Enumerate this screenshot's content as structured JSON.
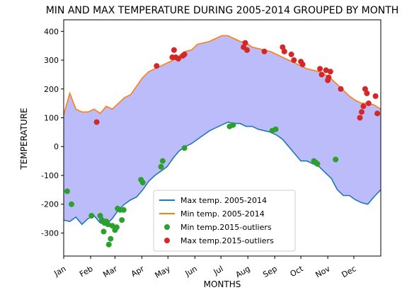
{
  "chart_data": {
    "type": "line",
    "title": "MIN AND MAX TEMPERATURE DURING 2005-2014 GROUPED BY MONTH",
    "xlabel": "MONTHS",
    "ylabel": "TEMPERATURE",
    "ylim": [
      -380,
      440
    ],
    "xlim": [
      1,
      366
    ],
    "x_tick_labels": [
      "Jan",
      "Feb",
      "Mar",
      "Apr",
      "May",
      "Jun",
      "Jul",
      "Aug",
      "Sep",
      "Oct",
      "Nov",
      "Dec"
    ],
    "x_tick_days": [
      1,
      32,
      60,
      91,
      121,
      152,
      182,
      213,
      244,
      274,
      305,
      335
    ],
    "y_ticks": [
      -300,
      -200,
      -100,
      0,
      100,
      200,
      300,
      400
    ],
    "fill_color": "#bcbcfb",
    "legend": {
      "placement": "lower-center"
    },
    "series": [
      {
        "name": "Max temp. 2005-2014",
        "kind": "line",
        "color": "#1f77b4",
        "x": [
          1,
          8,
          15,
          22,
          29,
          36,
          43,
          50,
          57,
          64,
          71,
          78,
          85,
          92,
          99,
          106,
          113,
          120,
          127,
          134,
          141,
          148,
          155,
          162,
          169,
          176,
          183,
          190,
          197,
          204,
          211,
          218,
          225,
          232,
          239,
          246,
          253,
          260,
          267,
          274,
          281,
          288,
          295,
          302,
          309,
          316,
          323,
          330,
          337,
          344,
          351,
          358,
          366
        ],
        "y": [
          -255,
          -260,
          -245,
          -270,
          -250,
          -240,
          -265,
          -270,
          -250,
          -220,
          -200,
          -185,
          -175,
          -150,
          -120,
          -100,
          -85,
          -70,
          -40,
          -15,
          0,
          10,
          25,
          40,
          55,
          65,
          75,
          85,
          80,
          80,
          70,
          70,
          60,
          55,
          50,
          40,
          25,
          0,
          -25,
          -50,
          -50,
          -60,
          -70,
          -90,
          -110,
          -150,
          -170,
          -170,
          -185,
          -195,
          -200,
          -175,
          -150
        ]
      },
      {
        "name": "Min temp. 2005-2014",
        "kind": "line",
        "color": "#ff7f0e",
        "x": [
          1,
          8,
          15,
          22,
          29,
          36,
          43,
          50,
          57,
          64,
          71,
          78,
          85,
          92,
          99,
          106,
          113,
          120,
          127,
          134,
          141,
          148,
          155,
          162,
          169,
          176,
          183,
          190,
          197,
          204,
          211,
          218,
          225,
          232,
          239,
          246,
          253,
          260,
          267,
          274,
          281,
          288,
          295,
          302,
          309,
          316,
          323,
          330,
          337,
          344,
          351,
          358,
          366
        ],
        "y": [
          110,
          185,
          130,
          120,
          120,
          130,
          115,
          140,
          130,
          150,
          170,
          180,
          210,
          240,
          260,
          270,
          280,
          290,
          300,
          315,
          330,
          335,
          355,
          360,
          365,
          375,
          385,
          385,
          375,
          365,
          360,
          345,
          340,
          335,
          330,
          320,
          310,
          300,
          290,
          280,
          270,
          265,
          260,
          250,
          235,
          215,
          195,
          175,
          160,
          150,
          150,
          145,
          130
        ]
      },
      {
        "name": "Min temp.2015-outliers",
        "kind": "scatter",
        "color": "#2ca02c",
        "x": [
          5,
          10,
          33,
          43,
          45,
          47,
          48,
          50,
          52,
          53,
          55,
          57,
          60,
          62,
          63,
          66,
          68,
          70,
          90,
          92,
          113,
          115,
          140,
          192,
          196,
          241,
          245,
          289,
          291,
          293,
          314
        ],
        "y": [
          -155,
          -200,
          -240,
          -240,
          -255,
          -295,
          -265,
          -260,
          -270,
          -340,
          -320,
          -275,
          -290,
          -280,
          -215,
          -220,
          -255,
          -220,
          -115,
          -125,
          -70,
          -50,
          -5,
          70,
          75,
          55,
          60,
          -50,
          -55,
          -60,
          -45
        ]
      },
      {
        "name": "Max temp.2015-outliers",
        "kind": "scatter",
        "color": "#d62728",
        "x": [
          39,
          108,
          126,
          128,
          130,
          133,
          138,
          140,
          208,
          210,
          212,
          232,
          253,
          255,
          263,
          266,
          274,
          276,
          296,
          298,
          303,
          305,
          306,
          308,
          320,
          342,
          344,
          346,
          348,
          350,
          352,
          360,
          362
        ],
        "y": [
          85,
          280,
          310,
          335,
          310,
          305,
          315,
          320,
          345,
          360,
          335,
          330,
          345,
          330,
          320,
          300,
          295,
          285,
          270,
          250,
          265,
          230,
          240,
          260,
          200,
          100,
          120,
          140,
          200,
          185,
          150,
          175,
          115
        ]
      }
    ]
  }
}
